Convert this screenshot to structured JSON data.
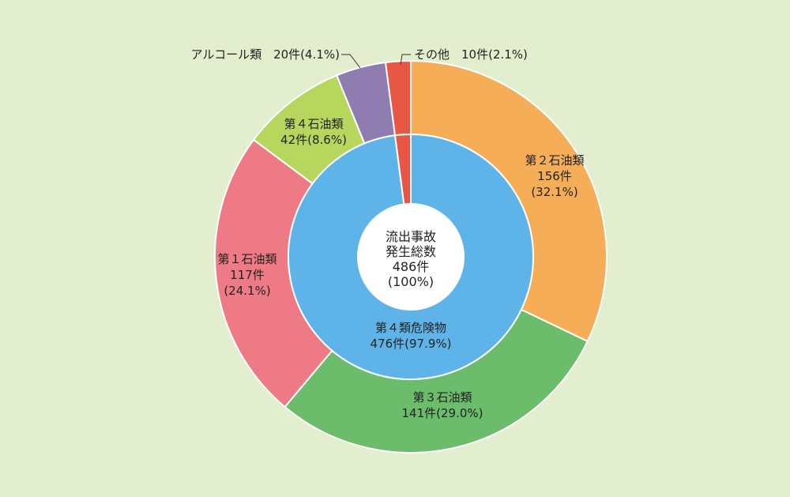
{
  "chart_data": {
    "type": "pie",
    "title": "",
    "center": {
      "lines": [
        "流出事故",
        "発生総数",
        "486件",
        "(100%)"
      ]
    },
    "inner_ring": [
      {
        "label_lines": [
          "第４類危険物",
          "476件(97.9%)"
        ],
        "value": 476,
        "color": "#5eb4e8"
      }
    ],
    "outer_ring": [
      {
        "name": "第２石油類",
        "value": 156,
        "color": "#f5ae57",
        "label_lines": [
          "第２石油類",
          "156件",
          "(32.1%)"
        ]
      },
      {
        "name": "第３石油類",
        "value": 141,
        "color": "#6bbd6c",
        "label_lines": [
          "第３石油類",
          "141件(29.0%)"
        ]
      },
      {
        "name": "第１石油類",
        "value": 117,
        "color": "#ee7a86",
        "label_lines": [
          "第１石油類",
          "117件",
          "(24.1%)"
        ]
      },
      {
        "name": "第４石油類",
        "value": 42,
        "color": "#b7d65e",
        "label_lines": [
          "第４石油類",
          "42件(8.6%)"
        ]
      },
      {
        "name": "アルコール類",
        "value": 20,
        "color": "#8f7cb0",
        "label_lines": [
          "アルコール類　20件(4.1%)"
        ]
      },
      {
        "name": "その他",
        "value": 10,
        "color": "#e75744",
        "label_lines": [
          "その他　10件(2.1%)"
        ]
      }
    ]
  }
}
